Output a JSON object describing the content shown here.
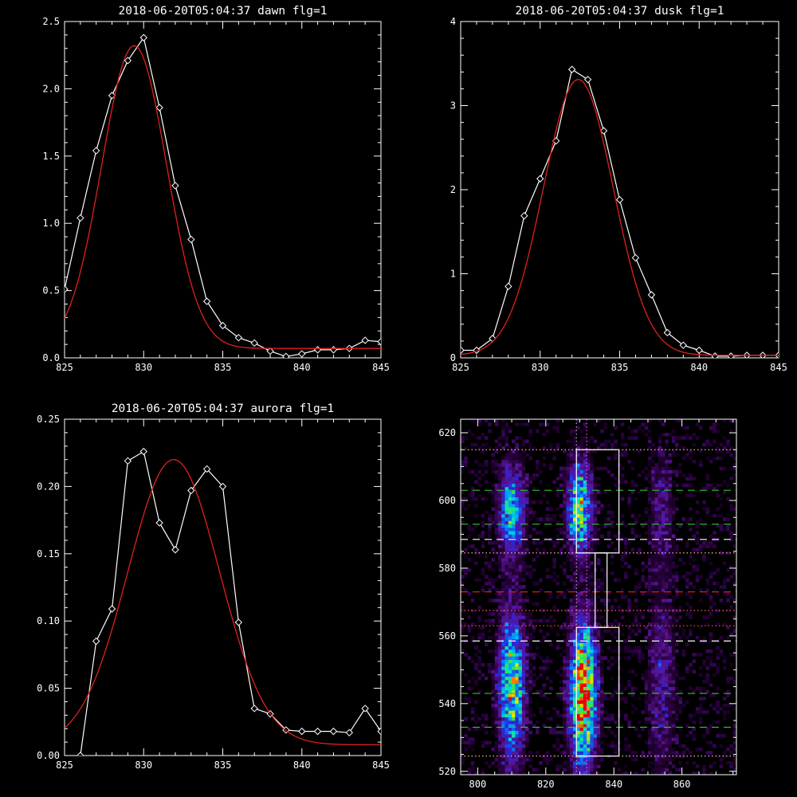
{
  "chart_data": [
    {
      "type": "line",
      "title": "2018-06-20T05:04:37 dawn flg=1",
      "xlim": [
        825,
        845
      ],
      "ylim": [
        0,
        2.5
      ],
      "xticks": [
        "825",
        "830",
        "835",
        "840",
        "845"
      ],
      "yticks": [
        "0.0",
        "0.5",
        "1.0",
        "1.5",
        "2.0",
        "2.5"
      ],
      "series": [
        {
          "color": "#ffffff",
          "markers": "diamond",
          "x": [
            825,
            826,
            827,
            828,
            829,
            830,
            831,
            832,
            833,
            834,
            835,
            836,
            837,
            838,
            839,
            840,
            841,
            842,
            843,
            844,
            845
          ],
          "y": [
            0.51,
            1.04,
            1.54,
            1.95,
            2.21,
            2.38,
            1.86,
            1.28,
            0.88,
            0.42,
            0.24,
            0.15,
            0.11,
            0.05,
            0.01,
            0.03,
            0.06,
            0.06,
            0.07,
            0.13,
            0.12
          ]
        },
        {
          "color": "#e02020",
          "type": "gaussian-fit",
          "amplitude": 2.25,
          "center": 829.4,
          "sigma": 2.05,
          "offset": 0.07
        }
      ]
    },
    {
      "type": "line",
      "title": "2018-06-20T05:04:37 dusk flg=1",
      "xlim": [
        825,
        845
      ],
      "ylim": [
        0,
        4
      ],
      "xticks": [
        "825",
        "830",
        "835",
        "840",
        "845"
      ],
      "yticks": [
        "0",
        "1",
        "2",
        "3",
        "4"
      ],
      "series": [
        {
          "color": "#ffffff",
          "markers": "diamond",
          "x": [
            825,
            826,
            827,
            828,
            829,
            830,
            831,
            832,
            833,
            834,
            835,
            836,
            837,
            838,
            839,
            840,
            841,
            842,
            843,
            844,
            845
          ],
          "y": [
            0.09,
            0.09,
            0.23,
            0.85,
            1.69,
            2.13,
            2.58,
            3.43,
            3.31,
            2.7,
            1.88,
            1.19,
            0.75,
            0.3,
            0.15,
            0.09,
            0.02,
            0.02,
            0.03,
            0.03,
            0.03
          ]
        },
        {
          "color": "#e02020",
          "type": "gaussian-fit",
          "amplitude": 3.28,
          "center": 832.4,
          "sigma": 2.2,
          "offset": 0.03
        }
      ]
    },
    {
      "type": "line",
      "title": "2018-06-20T05:04:37 aurora flg=1",
      "xlim": [
        825,
        845
      ],
      "ylim": [
        0,
        0.25
      ],
      "xticks": [
        "825",
        "830",
        "835",
        "840",
        "845"
      ],
      "yticks": [
        "0.00",
        "0.05",
        "0.10",
        "0.15",
        "0.20",
        "0.25"
      ],
      "series": [
        {
          "color": "#ffffff",
          "markers": "diamond",
          "x": [
            826,
            827,
            828,
            829,
            830,
            831,
            832,
            833,
            834,
            835,
            836,
            837,
            838,
            839,
            840,
            841,
            842,
            843,
            844,
            845
          ],
          "y": [
            0.0,
            0.085,
            0.109,
            0.219,
            0.226,
            0.173,
            0.153,
            0.197,
            0.213,
            0.2,
            0.099,
            0.035,
            0.031,
            0.019,
            0.018,
            0.018,
            0.018,
            0.017,
            0.035,
            0.018
          ]
        },
        {
          "color": "#e02020",
          "type": "gaussian-fit",
          "amplitude": 0.212,
          "center": 831.9,
          "sigma": 2.9,
          "offset": 0.008
        }
      ]
    },
    {
      "type": "heatmap",
      "title": "",
      "xlim": [
        795,
        876
      ],
      "ylim": [
        519,
        624
      ],
      "xticks": [
        "800",
        "820",
        "840",
        "860"
      ],
      "yticks": [
        "520",
        "540",
        "560",
        "580",
        "600",
        "620"
      ],
      "colormap": "rainbow",
      "bands": [
        {
          "x": 810,
          "xw": 2.6,
          "y": 597,
          "yw": 9,
          "amp": 0.55
        },
        {
          "x": 810,
          "xw": 2.6,
          "y": 545,
          "yw": 15,
          "amp": 0.7
        },
        {
          "x": 830,
          "xw": 2.4,
          "y": 598,
          "yw": 9,
          "amp": 0.7
        },
        {
          "x": 831,
          "xw": 2.6,
          "y": 543,
          "yw": 14,
          "amp": 1.0
        },
        {
          "x": 854,
          "xw": 2.6,
          "y": 597,
          "yw": 12,
          "amp": 0.18
        },
        {
          "x": 854,
          "xw": 2.8,
          "y": 547,
          "yw": 20,
          "amp": 0.22
        }
      ],
      "boxes": [
        {
          "x1": 829,
          "x2": 841.5,
          "y1": 584.5,
          "y2": 615
        },
        {
          "x1": 834.5,
          "x2": 838,
          "y1": 562.5,
          "y2": 584.5
        },
        {
          "x1": 829,
          "x2": 841.5,
          "y1": 524.5,
          "y2": 562.5
        }
      ],
      "hlines": [
        {
          "y": 615,
          "color": "#ffb0a0",
          "style": "dotted"
        },
        {
          "y": 603,
          "color": "#30c030",
          "style": "dashed"
        },
        {
          "y": 593,
          "color": "#30c030",
          "style": "dashed"
        },
        {
          "y": 588.5,
          "color": "#ffffff",
          "style": "dashed"
        },
        {
          "y": 584.5,
          "color": "#ffb0a0",
          "style": "dotted"
        },
        {
          "y": 573,
          "color": "#d02020",
          "style": "dashed"
        },
        {
          "y": 567.5,
          "color": "#ff6060",
          "style": "dotted"
        },
        {
          "y": 563,
          "color": "#ff4040",
          "style": "dotted"
        },
        {
          "y": 558.5,
          "color": "#ffffff",
          "style": "dashed"
        },
        {
          "y": 543,
          "color": "#30c030",
          "style": "dashed"
        },
        {
          "y": 533,
          "color": "#30c030",
          "style": "dashed"
        },
        {
          "y": 524.5,
          "color": "#ffb0a0",
          "style": "dotted"
        }
      ],
      "vlines": [
        {
          "x": 829,
          "color": "#b0b0b0",
          "style": "dotted"
        },
        {
          "x": 832,
          "color": "#e060e0",
          "style": "dotted"
        }
      ]
    }
  ]
}
